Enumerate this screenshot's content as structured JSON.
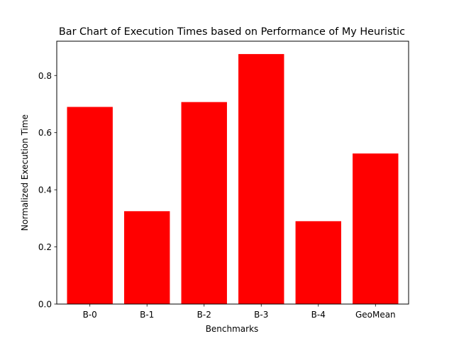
{
  "chart_data": {
    "type": "bar",
    "title": "Bar Chart of Execution Times based on Performance of My Heuristic",
    "xlabel": "Benchmarks",
    "ylabel": "Normalized Execution Time",
    "categories": [
      "B-0",
      "B-1",
      "B-2",
      "B-3",
      "B-4",
      "GeoMean"
    ],
    "values": [
      0.69,
      0.325,
      0.707,
      0.875,
      0.29,
      0.527
    ],
    "ylim": [
      0,
      0.92
    ],
    "yticks": [
      0.0,
      0.2,
      0.4,
      0.6,
      0.8
    ],
    "ytick_labels": [
      "0.0",
      "0.2",
      "0.4",
      "0.6",
      "0.8"
    ],
    "bar_color": "#ff0000",
    "grid": false,
    "legend": "none"
  }
}
